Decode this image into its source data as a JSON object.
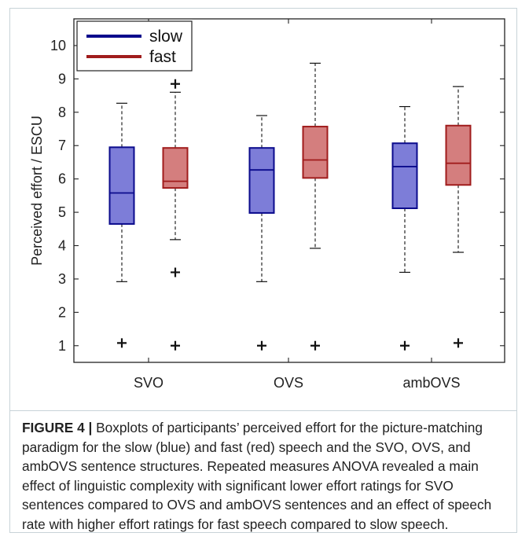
{
  "chart_data": {
    "type": "boxplot",
    "ylabel": "Perceived effort / ESCU",
    "xlabel": "",
    "ylim": [
      0.5,
      10.8
    ],
    "yticks": [
      1,
      2,
      3,
      4,
      5,
      6,
      7,
      8,
      9,
      10
    ],
    "grid": false,
    "legend_position": "top-left",
    "categories": [
      "SVO",
      "OVS",
      "ambOVS"
    ],
    "series": [
      {
        "name": "slow",
        "line_color": "#0a0a8c",
        "fill_color": "#7d7dd8",
        "boxes": [
          {
            "whisker_low": 2.92,
            "q1": 4.65,
            "median": 5.58,
            "q3": 6.95,
            "whisker_high": 8.27,
            "outliers": [
              1.08
            ]
          },
          {
            "whisker_low": 2.92,
            "q1": 4.98,
            "median": 6.27,
            "q3": 6.93,
            "whisker_high": 7.9,
            "outliers": [
              1.0
            ]
          },
          {
            "whisker_low": 3.2,
            "q1": 5.12,
            "median": 6.37,
            "q3": 7.07,
            "whisker_high": 8.17,
            "outliers": [
              1.0
            ]
          }
        ]
      },
      {
        "name": "fast",
        "line_color": "#a01c1c",
        "fill_color": "#d47e7e",
        "boxes": [
          {
            "whisker_low": 4.18,
            "q1": 5.73,
            "median": 5.93,
            "q3": 6.93,
            "whisker_high": 8.6,
            "outliers": [
              1.0,
              3.2,
              8.85
            ]
          },
          {
            "whisker_low": 3.92,
            "q1": 6.03,
            "median": 6.57,
            "q3": 7.57,
            "whisker_high": 9.47,
            "outliers": [
              1.0
            ]
          },
          {
            "whisker_low": 3.8,
            "q1": 5.82,
            "median": 6.47,
            "q3": 7.6,
            "whisker_high": 8.77,
            "outliers": [
              1.08
            ]
          }
        ]
      }
    ]
  },
  "caption": {
    "figure_label": "FIGURE 4 |",
    "text": " Boxplots of participants’ perceived effort for the picture-matching paradigm for the slow (blue) and fast (red) speech and the SVO, OVS, and ambOVS sentence structures. Repeated measures ANOVA revealed a main effect of linguistic complexity with significant lower effort ratings for SVO sentences compared to OVS and ambOVS sentences and an effect of speech rate with higher effort ratings for fast speech compared to slow speech."
  }
}
